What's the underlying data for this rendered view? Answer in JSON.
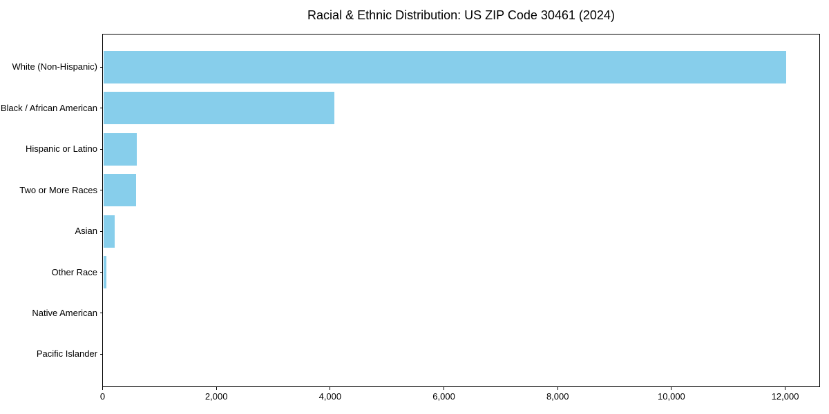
{
  "chart_data": {
    "type": "bar",
    "orientation": "horizontal",
    "title": "Racial & Ethnic Distribution: US ZIP Code 30461 (2024)",
    "categories": [
      "White (Non-Hispanic)",
      "Black / African American",
      "Hispanic or Latino",
      "Two or More Races",
      "Asian",
      "Other Race",
      "Native American",
      "Pacific Islander"
    ],
    "values": [
      12000,
      4060,
      590,
      575,
      195,
      50,
      0,
      0
    ],
    "xlabel": "",
    "ylabel": "",
    "xlim": [
      0,
      12600
    ],
    "xticks": [
      0,
      2000,
      4000,
      6000,
      8000,
      10000,
      12000
    ],
    "xtick_labels": [
      "0",
      "2,000",
      "4,000",
      "6,000",
      "8,000",
      "10,000",
      "12,000"
    ],
    "bar_color": "#87CEEB",
    "axis_color": "#000000",
    "text_color": "#000000",
    "background_color": "#ffffff",
    "grid": false,
    "legend": null,
    "bar_height_ratio": 0.8
  }
}
